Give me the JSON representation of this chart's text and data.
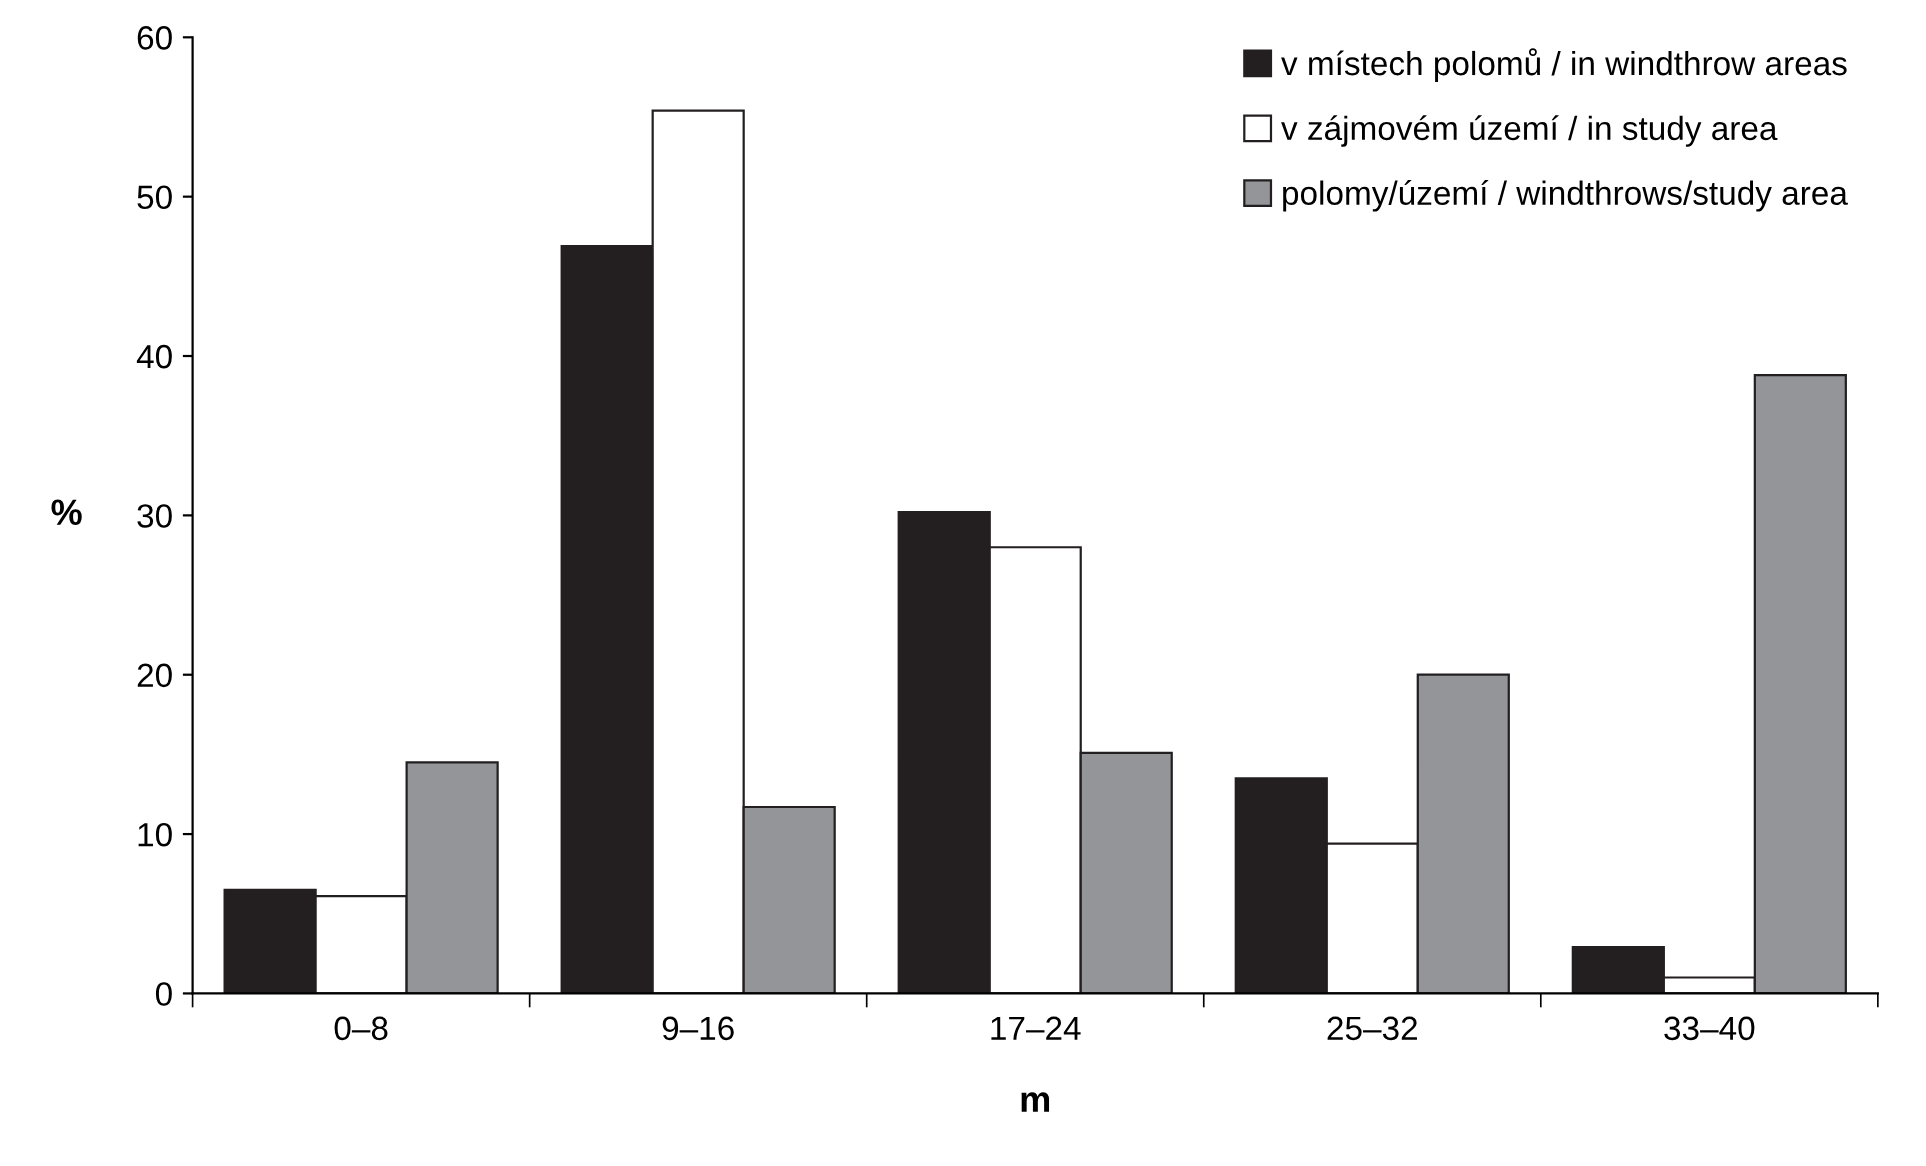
{
  "chart_data": {
    "type": "bar",
    "xlabel": "m",
    "ylabel": "%",
    "categories": [
      "0–8",
      "9–16",
      "17–24",
      "25–32",
      "33–40"
    ],
    "series": [
      {
        "name": "v místech polomů / in windthrow areas",
        "color": "#231f20",
        "values": [
          6.5,
          46.9,
          30.2,
          13.5,
          2.9
        ]
      },
      {
        "name": "v zájmovém území / in study area",
        "color": "#ffffff",
        "values": [
          6.1,
          55.4,
          28.0,
          9.4,
          1.0
        ]
      },
      {
        "name": "polomy/území / windthrows/study area",
        "color": "#939598",
        "values": [
          14.5,
          11.7,
          15.1,
          20.0,
          38.8
        ]
      }
    ],
    "ylim": [
      0,
      60
    ],
    "yticks": [
      0,
      10,
      20,
      30,
      40,
      50,
      60
    ],
    "grid": false,
    "legend": "top right"
  }
}
